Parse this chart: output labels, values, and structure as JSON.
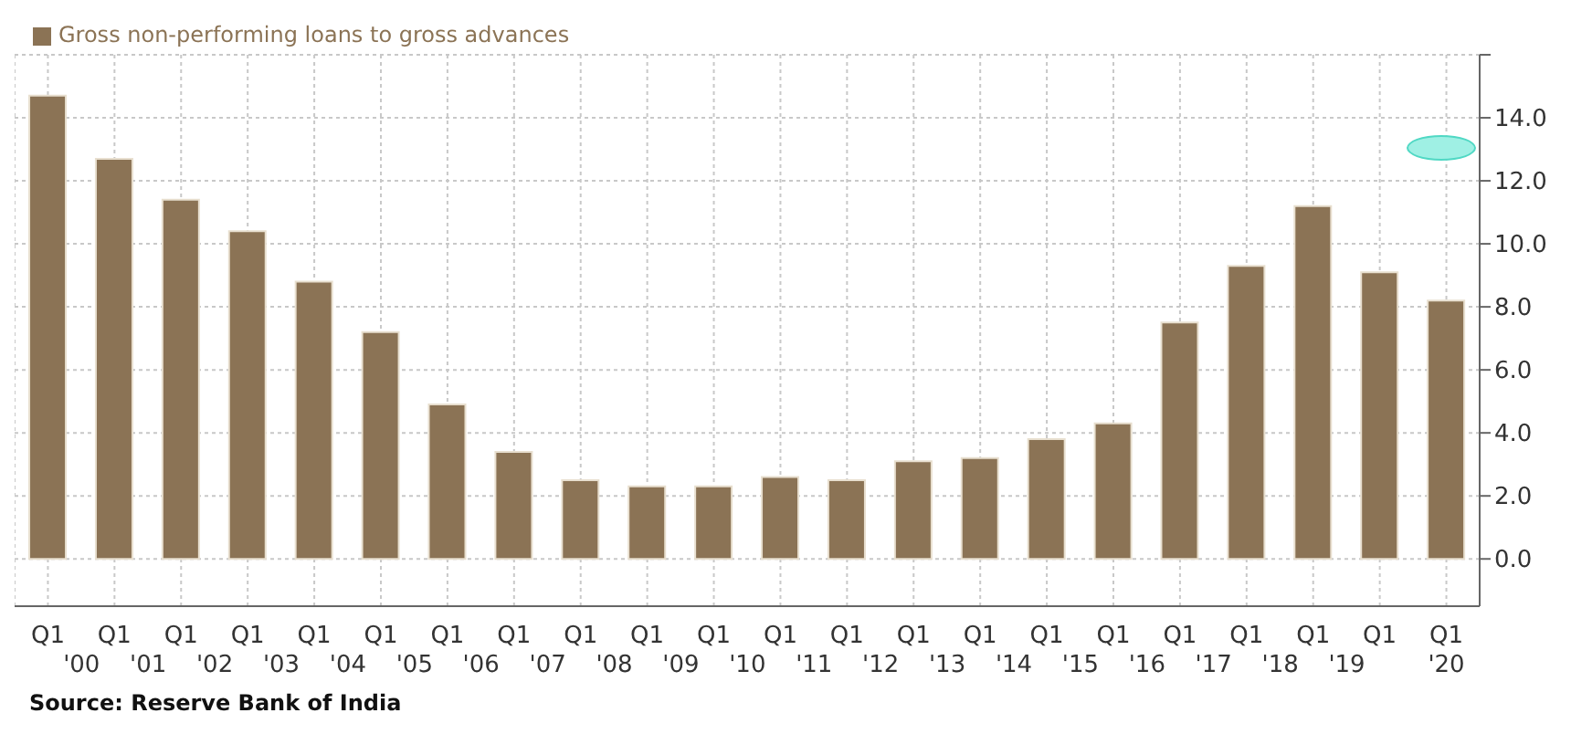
{
  "chart_data": {
    "type": "bar",
    "categories": [
      "Q1",
      "Q1\n'00",
      "Q1\n'01",
      "Q1\n'02",
      "Q1\n'03",
      "Q1\n'04",
      "Q1\n'05",
      "Q1\n'06",
      "Q1\n'07",
      "Q1\n'08",
      "Q1\n'09",
      "Q1\n'10",
      "Q1\n'11",
      "Q1\n'12",
      "Q1\n'13",
      "Q1\n'14",
      "Q1\n'15",
      "Q1\n'16",
      "Q1\n'17",
      "Q1\n'18",
      "Q1\n'19",
      "Q1\n'20"
    ],
    "series": [
      {
        "name": "Gross non-performing loans to gross advances",
        "color": "#8b7355",
        "values": [
          14.7,
          12.7,
          11.4,
          10.4,
          8.8,
          7.2,
          4.9,
          3.4,
          2.5,
          2.3,
          2.3,
          2.6,
          2.5,
          3.1,
          3.2,
          3.8,
          4.3,
          7.5,
          9.3,
          11.2,
          9.1,
          8.2
        ]
      }
    ],
    "ylim": [
      -1.5,
      16
    ],
    "yticks": [
      {
        "value": 0,
        "label": "0.0"
      },
      {
        "value": 2,
        "label": "2.0"
      },
      {
        "value": 4,
        "label": "4.0"
      },
      {
        "value": 6,
        "label": "6.0"
      },
      {
        "value": 8,
        "label": "8.0"
      },
      {
        "value": 10,
        "label": "10.0"
      },
      {
        "value": 12,
        "label": "12.0"
      },
      {
        "value": 14,
        "label": "14.0"
      },
      {
        "value": 16,
        "label": null
      }
    ],
    "grid": true,
    "legend": "top left",
    "annotations": [
      "Source: Reserve Bank of India"
    ]
  }
}
